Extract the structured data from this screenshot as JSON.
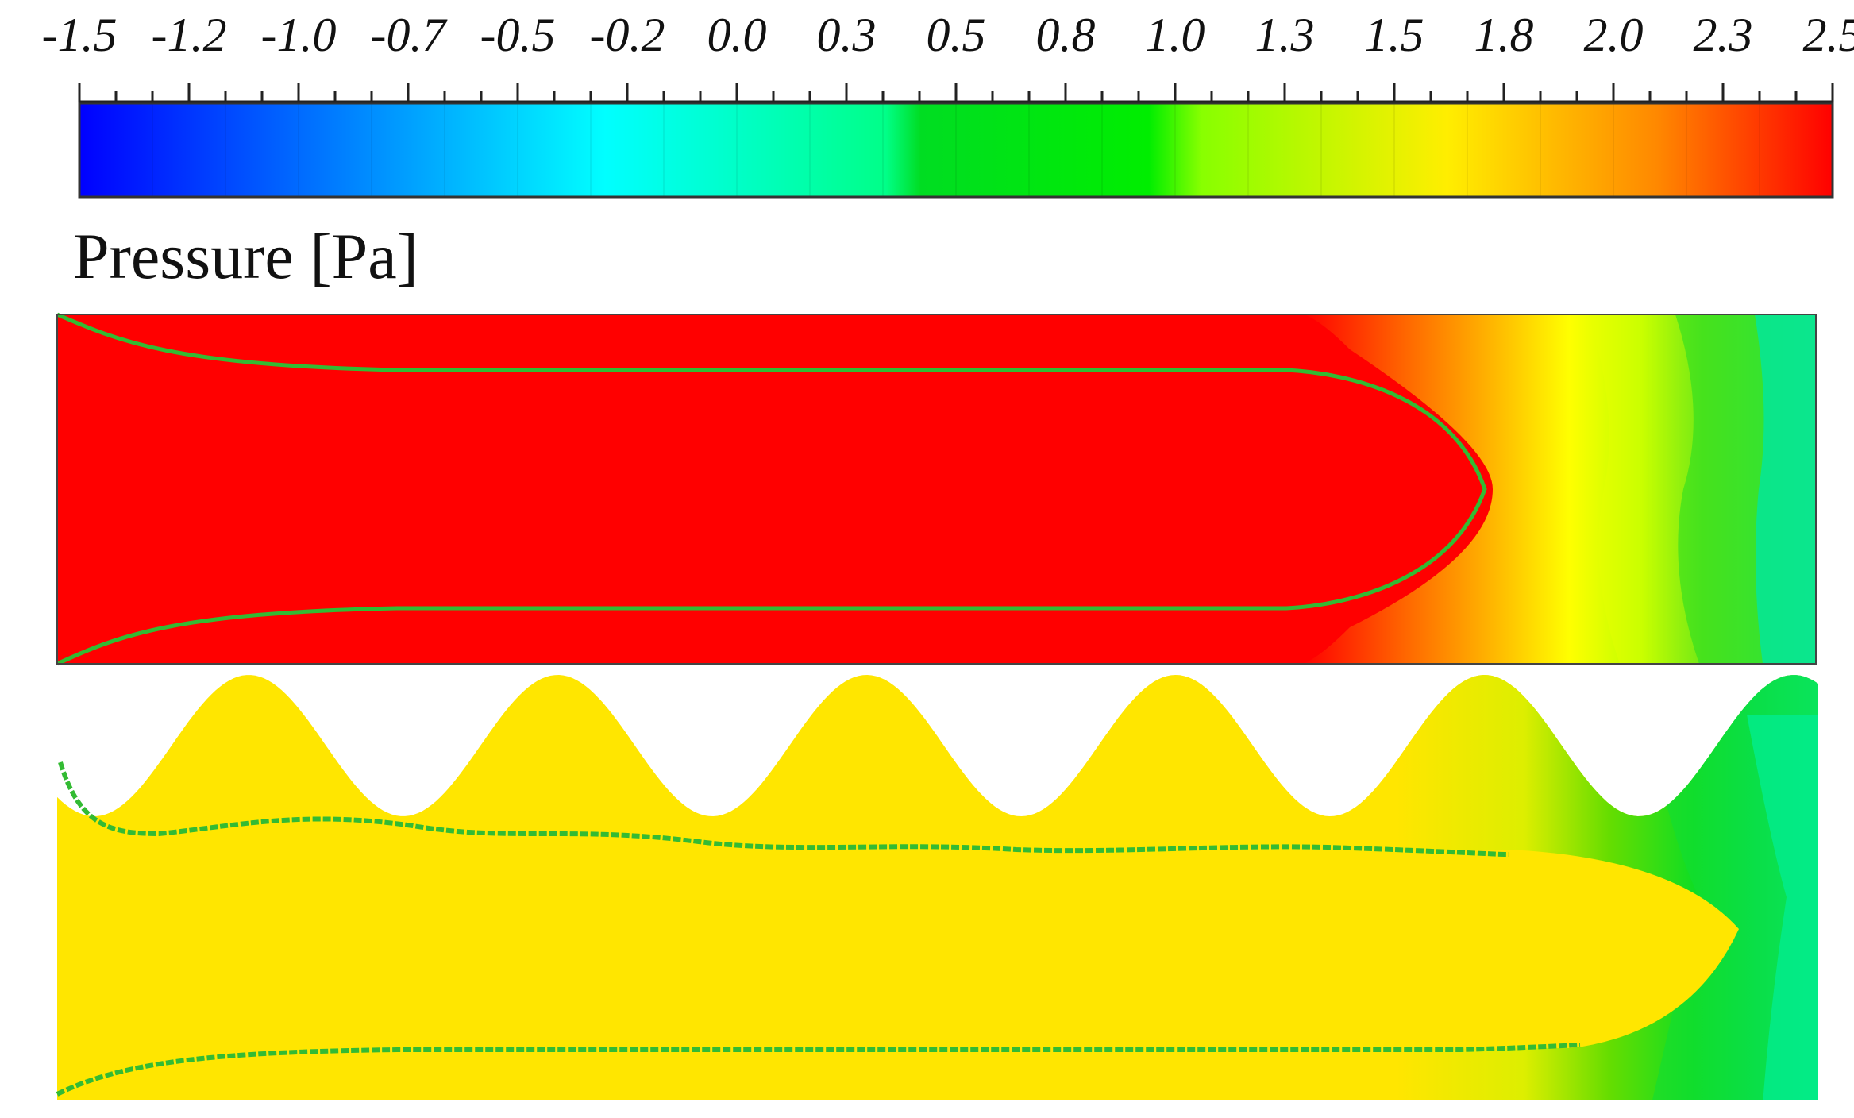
{
  "legend": {
    "title": "Pressure [Pa]",
    "tick_labels": [
      "-1.5",
      "-1.2",
      "-1.0",
      "-0.7",
      "-0.5",
      "-0.2",
      "0.0",
      "0.3",
      "0.5",
      "0.8",
      "1.0",
      "1.3",
      "1.5",
      "1.8",
      "2.0",
      "2.3",
      "2.5"
    ],
    "range": [
      -1.5,
      2.5
    ],
    "colormap": [
      "#0000ff",
      "#0077ff",
      "#00ffff",
      "#00ff77",
      "#00ee00",
      "#22ee00",
      "#ffff00",
      "#ff9900",
      "#ff0000"
    ]
  },
  "panels": [
    {
      "id": "straight-channel",
      "wall": "flat",
      "core_color": "#ff0000",
      "outlet_colors": [
        "#ff0000",
        "#ff8800",
        "#ffdd00",
        "#ffff00",
        "#ccff00",
        "#22dd22",
        "#00ee77",
        "#00eeaa"
      ]
    },
    {
      "id": "wavy-channel",
      "wall": "sinusoidal",
      "wave_count": 6,
      "core_color": "#ffe600",
      "outlet_colors": [
        "#ffe600",
        "#ccee00",
        "#55dd00",
        "#00dd33",
        "#00ee88"
      ]
    }
  ],
  "interface_color": "#33bb33"
}
